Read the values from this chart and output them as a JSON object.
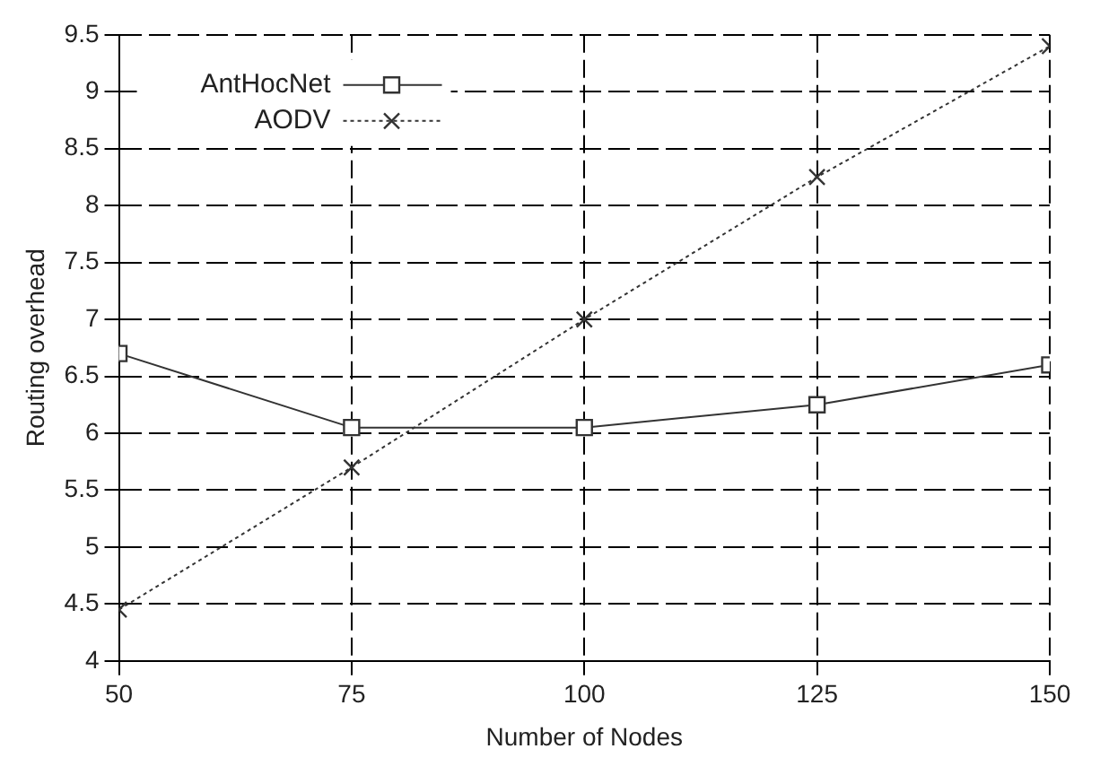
{
  "chart_data": {
    "type": "line",
    "xlabel": "Number of Nodes",
    "ylabel": "Routing overhead",
    "x": [
      50,
      75,
      100,
      125,
      150
    ],
    "series": [
      {
        "name": "AntHocNet",
        "color": "#333333",
        "values": [
          6.7,
          6.05,
          6.05,
          6.25,
          6.6
        ],
        "marker": "square",
        "line_style": "solid"
      },
      {
        "name": "AODV",
        "color": "#333333",
        "values": [
          4.45,
          5.7,
          7.0,
          8.25,
          9.4
        ],
        "marker": "cross",
        "line_style": "dotted"
      }
    ],
    "xlim": [
      50,
      150
    ],
    "xticks": [
      50,
      75,
      100,
      125,
      150
    ],
    "ylim": [
      4,
      9.5
    ],
    "yticks": [
      4,
      4.5,
      5,
      5.5,
      6,
      6.5,
      7,
      7.5,
      8,
      8.5,
      9,
      9.5
    ],
    "grid": true,
    "legend": "top left"
  }
}
